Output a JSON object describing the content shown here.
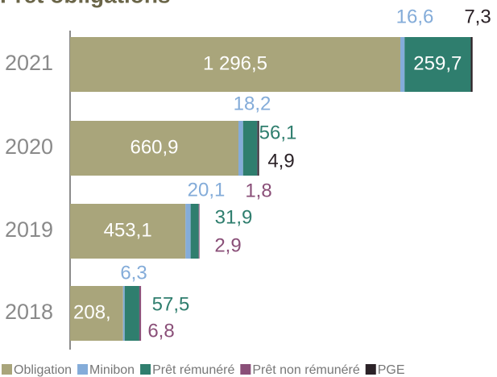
{
  "chart_data": {
    "type": "bar",
    "orientation": "horizontal",
    "stacked": true,
    "title": "Prêt obligations",
    "categories": [
      "2021",
      "2020",
      "2019",
      "2018"
    ],
    "series": [
      {
        "name": "Obligation",
        "color": "#a9a57b",
        "values": [
          1296.5,
          660.9,
          453.1,
          208
        ],
        "value_labels": [
          "1 296,5",
          "660,9",
          "453,1",
          "208,"
        ]
      },
      {
        "name": "Minibon",
        "color": "#84acd9",
        "values": [
          16.6,
          18.2,
          20.1,
          6.3
        ],
        "value_labels": [
          "16,6",
          "18,2",
          "20,1",
          "6,3"
        ]
      },
      {
        "name": "Prêt rémunéré",
        "color": "#2f7e6e",
        "values": [
          259.7,
          56.1,
          31.9,
          57.5
        ],
        "value_labels": [
          "259,7",
          "56,1",
          "31,9",
          "57,5"
        ]
      },
      {
        "name": "Prêt non rémunéré",
        "color": "#8a4f78",
        "values": [
          null,
          1.8,
          2.9,
          6.8
        ],
        "value_labels": [
          null,
          "1,8",
          "2,9",
          "6,8"
        ]
      },
      {
        "name": "PGE",
        "color": "#2b2227",
        "values": [
          7.3,
          4.9,
          null,
          null
        ],
        "value_labels": [
          "7,3",
          "4,9",
          null,
          null
        ]
      }
    ]
  }
}
